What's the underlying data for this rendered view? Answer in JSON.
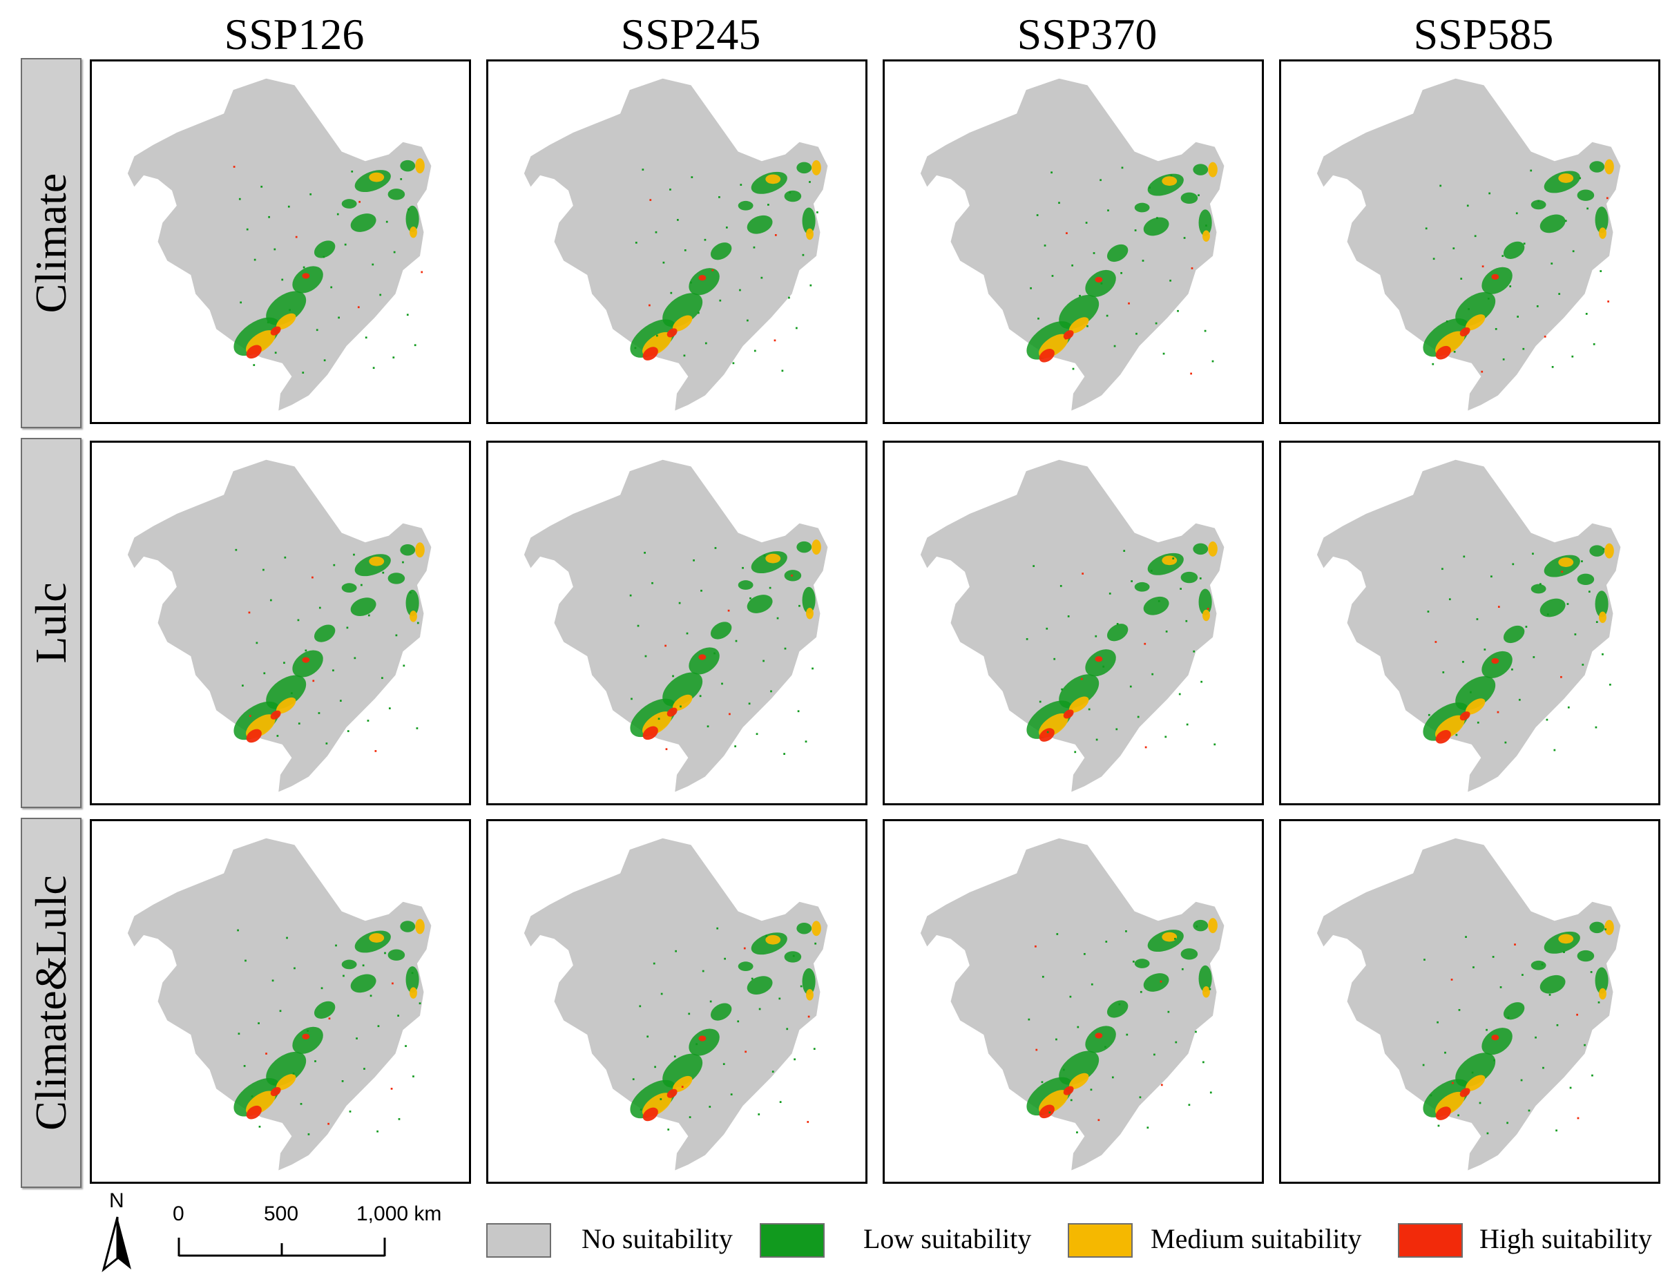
{
  "figure": {
    "scenarios": [
      "SSP126",
      "SSP245",
      "SSP370",
      "SSP585"
    ],
    "rows": [
      "Climate",
      "Lulc",
      "Climate&Lulc"
    ]
  },
  "colors": {
    "no": "#c8c8c8",
    "low": "#119a1e",
    "medium": "#f5b800",
    "high": "#f22a0a",
    "panel_border": "#000000"
  },
  "legend": {
    "items": [
      {
        "key": "no",
        "label": "No suitability"
      },
      {
        "key": "low",
        "label": "Low suitability"
      },
      {
        "key": "medium",
        "label": "Medium suitability"
      },
      {
        "key": "high",
        "label": "High suitability"
      }
    ]
  },
  "scale_bar": {
    "north": "N",
    "tick_labels": [
      "0",
      "500",
      "1,000 km"
    ]
  }
}
